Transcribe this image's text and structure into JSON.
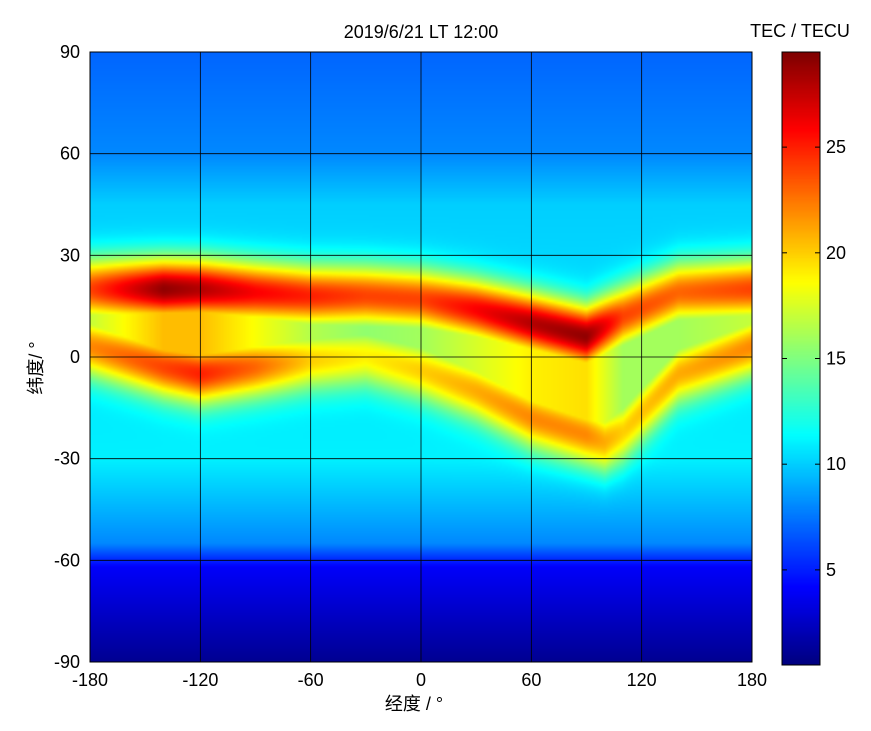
{
  "chart_data": {
    "type": "heatmap",
    "title": "2019/6/21 LT 12:00",
    "xlabel": "经度 / °",
    "ylabel": "纬度/ °",
    "colorbar_label": "TEC / TECU",
    "colormap": "jet",
    "xlim": [
      -180,
      180
    ],
    "ylim": [
      -90,
      90
    ],
    "clim": [
      0.5,
      29.5
    ],
    "x_ticks": [
      -180,
      -120,
      -60,
      0,
      60,
      120,
      180
    ],
    "x_tick_labels": [
      "-180",
      "-120",
      "-60",
      "0",
      "60",
      "120",
      "180"
    ],
    "y_ticks": [
      -90,
      -60,
      -30,
      0,
      30,
      60,
      90
    ],
    "y_tick_labels": [
      "-90",
      "-60",
      "-30",
      "0",
      "30",
      "60",
      "90"
    ],
    "colorbar_ticks": [
      5,
      10,
      15,
      20,
      25
    ],
    "colorbar_tick_labels": [
      "5",
      "10",
      "15",
      "20",
      "25"
    ],
    "grid": true,
    "features": {
      "background_tec": [
        {
          "lat": 90,
          "tec": 7
        },
        {
          "lat": 60,
          "tec": 8
        },
        {
          "lat": 45,
          "tec": 10
        },
        {
          "lat": -30,
          "tec": 11
        },
        {
          "lat": -55,
          "tec": 8
        },
        {
          "lat": -62,
          "tec": 4
        },
        {
          "lat": -90,
          "tec": 1
        }
      ],
      "northern_crest": {
        "lon": [
          -180,
          -140,
          -120,
          -90,
          -60,
          -30,
          0,
          30,
          60,
          90,
          110,
          140,
          180
        ],
        "lat": [
          20,
          20,
          20,
          19,
          18,
          18,
          17,
          14,
          10,
          6,
          12,
          19,
          20
        ],
        "peak_tec": [
          24,
          29,
          28,
          26,
          25,
          24,
          24,
          26,
          28,
          29,
          24,
          23,
          24
        ]
      },
      "southern_crest": {
        "lon": [
          -180,
          -140,
          -120,
          -90,
          -60,
          -30,
          0,
          30,
          60,
          90,
          100,
          110,
          140,
          180
        ],
        "lat": [
          3,
          -3,
          -5,
          -3,
          -1,
          0,
          -4,
          -10,
          -18,
          -23,
          -25,
          -22,
          -5,
          3
        ],
        "peak_tec": [
          22,
          24,
          25,
          23,
          20,
          19,
          20,
          21,
          22,
          22,
          21,
          20,
          21,
          22
        ]
      }
    }
  }
}
